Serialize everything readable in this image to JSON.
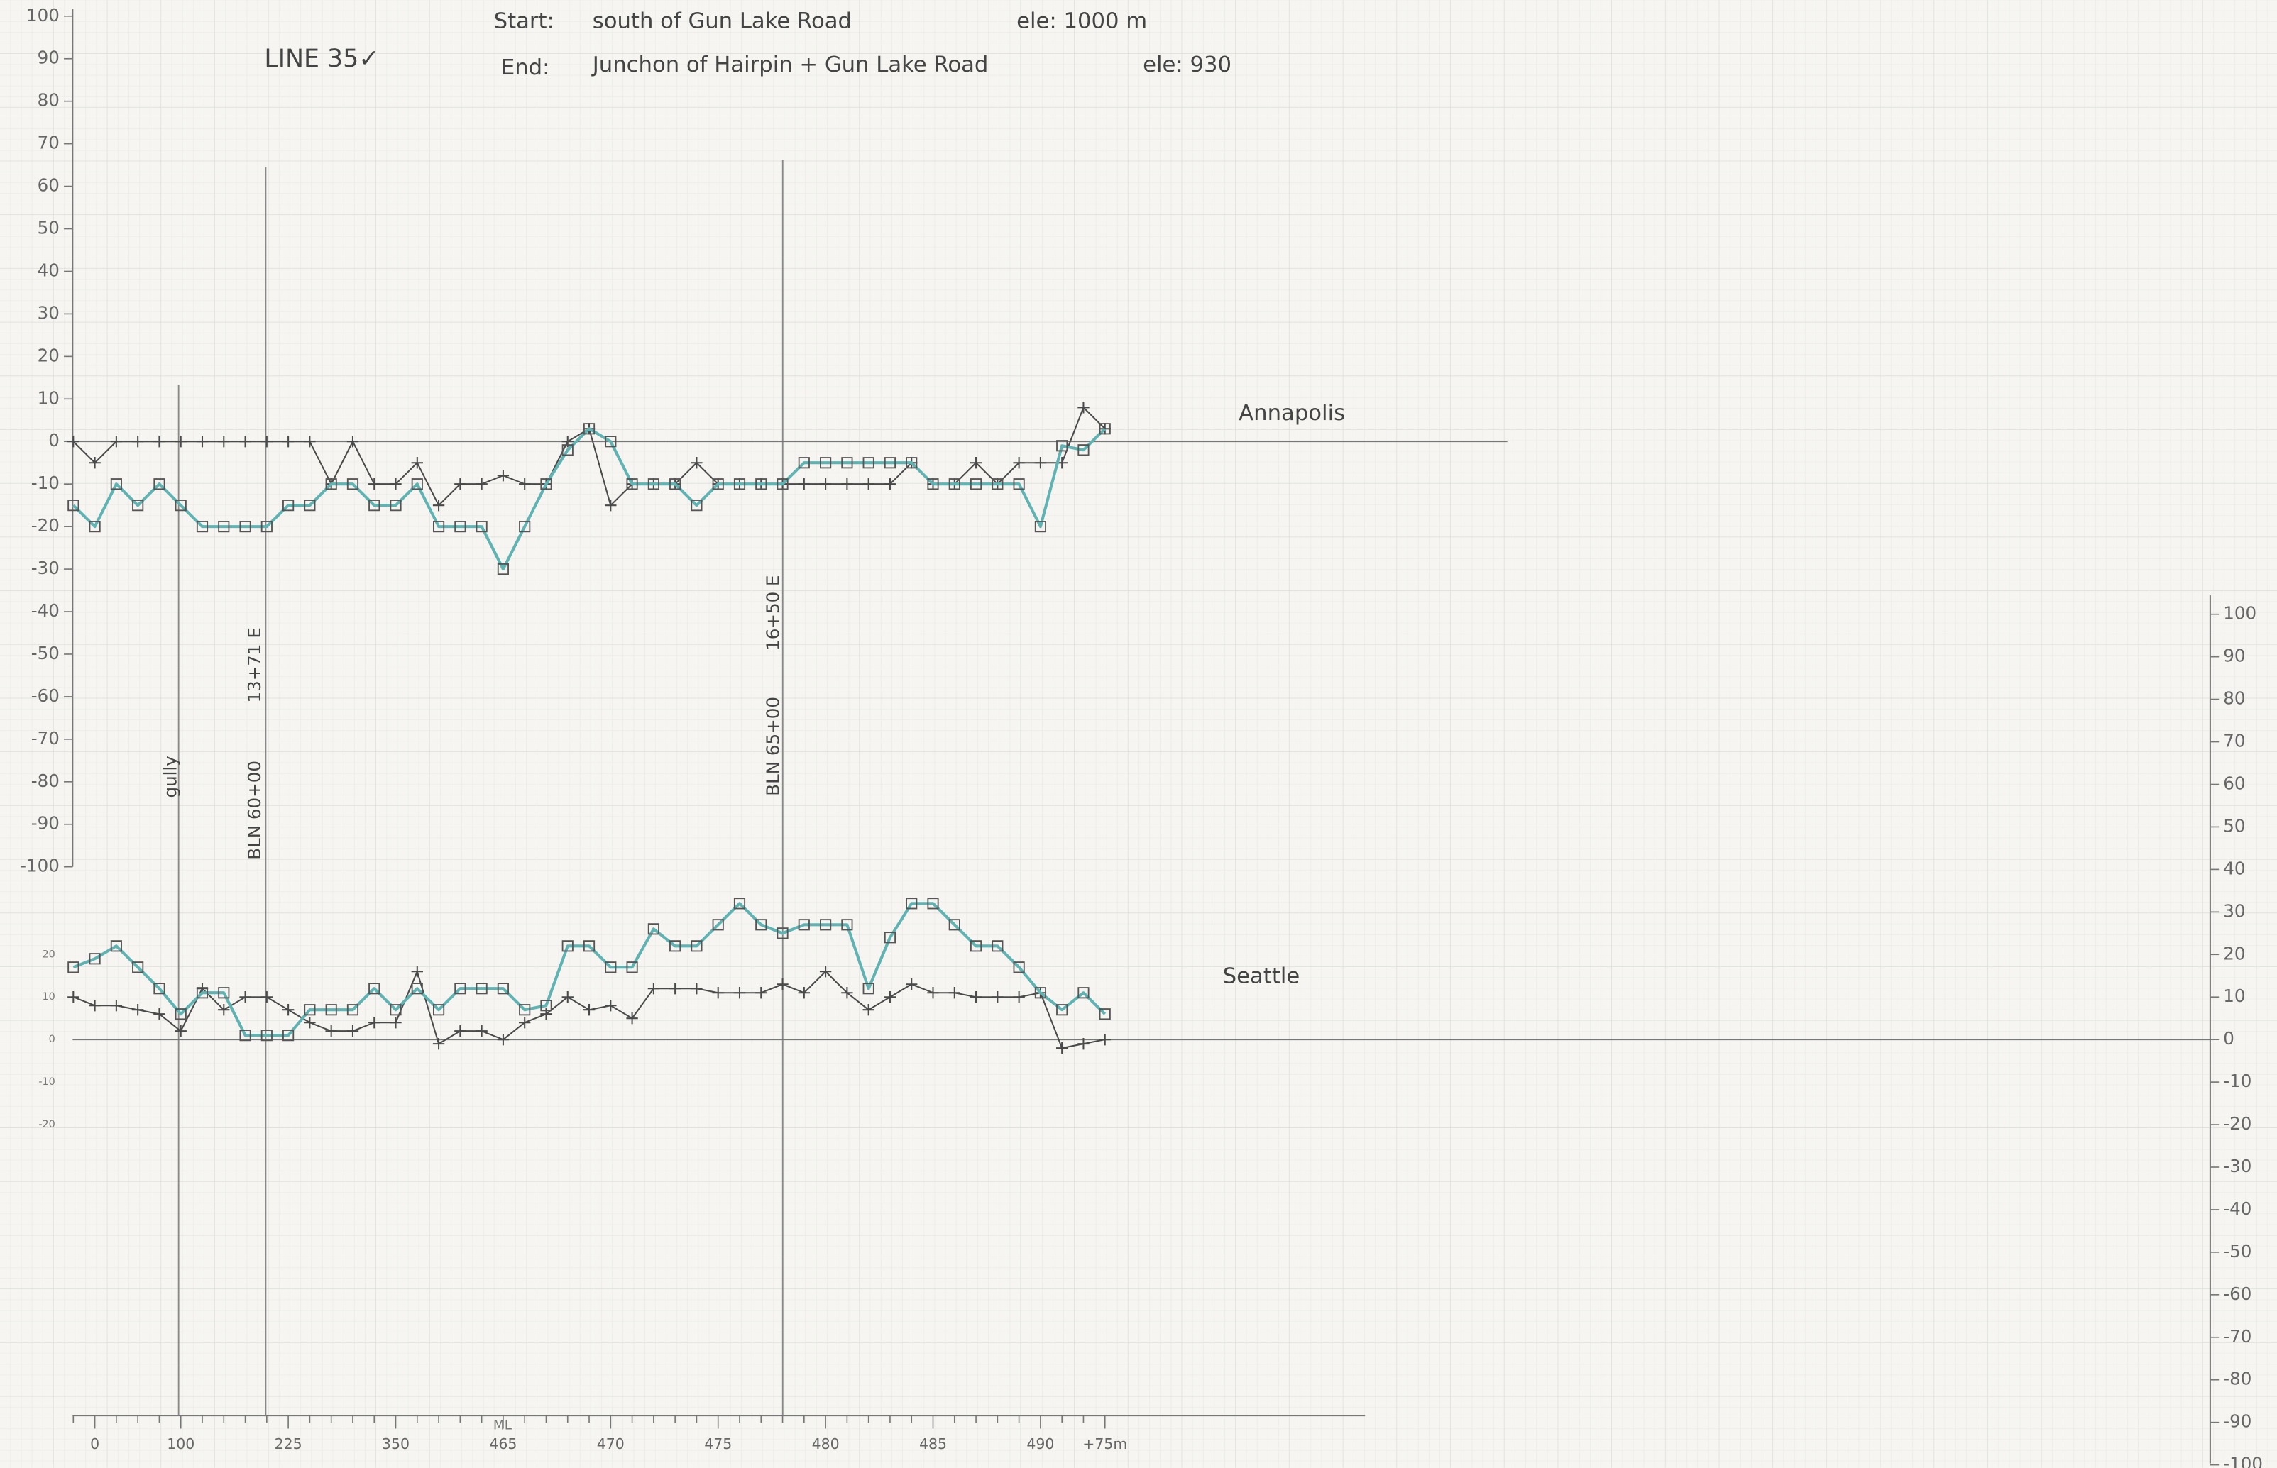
{
  "annotations": {
    "title": "LINE 35✓",
    "start_label": "Start:",
    "start": "south of Gun Lake Road",
    "start_ele": "ele: 1000 m",
    "end_label": "End:",
    "end": "Junchon of Hairpin + Gun Lake Road",
    "end_ele": "ele: 930",
    "gully": "gully",
    "bln1": "BLN 60+00",
    "bln1_offset": "13+71 E",
    "bln2": "BLN 65+00",
    "bln2_offset": "16+50 E",
    "ml": "ML"
  },
  "chart_data": [
    {
      "type": "line",
      "label": "Annapolis",
      "axis_side": "left",
      "ylim": [
        -100,
        100
      ],
      "yticks": [
        100,
        90,
        80,
        70,
        60,
        50,
        40,
        30,
        20,
        10,
        0,
        -10,
        -20,
        -30,
        -40,
        -50,
        -60,
        -70,
        -80,
        -90,
        -100
      ],
      "categories": [
        null,
        "0",
        null,
        null,
        null,
        "100",
        null,
        null,
        null,
        null,
        "225",
        null,
        null,
        null,
        null,
        "350",
        null,
        null,
        null,
        null,
        "465",
        null,
        null,
        null,
        null,
        "470",
        null,
        null,
        null,
        null,
        "475",
        null,
        null,
        null,
        null,
        "480",
        null,
        null,
        null,
        null,
        "485",
        null,
        null,
        null,
        null,
        "490",
        null,
        null,
        "+75m"
      ],
      "series": [
        {
          "marker": "cross",
          "color": "#4a4a4a",
          "values": [
            0,
            -5,
            0,
            0,
            0,
            0,
            0,
            0,
            0,
            0,
            0,
            0,
            -10,
            0,
            -10,
            -10,
            -5,
            -15,
            -10,
            -10,
            -8,
            -10,
            -10,
            0,
            3,
            -15,
            -10,
            -10,
            -10,
            -5,
            -10,
            -10,
            -10,
            -10,
            -10,
            -10,
            -10,
            -10,
            -10,
            -5,
            -10,
            -10,
            -5,
            -10,
            -5,
            -5,
            -5,
            8,
            3
          ]
        },
        {
          "marker": "square",
          "color": "#5fb3b3",
          "values": [
            -15,
            -20,
            -10,
            -15,
            -10,
            -15,
            -20,
            -20,
            -20,
            -20,
            -15,
            -15,
            -10,
            -10,
            -15,
            -15,
            -10,
            -20,
            -20,
            -20,
            -30,
            -20,
            -10,
            -2,
            3,
            0,
            -10,
            -10,
            -10,
            -15,
            -10,
            -10,
            -10,
            -10,
            -5,
            -5,
            -5,
            -5,
            -5,
            -5,
            -10,
            -10,
            -10,
            -10,
            -10,
            -20,
            -1,
            -2,
            3
          ]
        }
      ]
    },
    {
      "type": "line",
      "label": "Seattle",
      "axis_side": "right",
      "ylim": [
        -100,
        100
      ],
      "yticks": [
        100,
        90,
        80,
        70,
        60,
        50,
        40,
        30,
        20,
        10,
        0,
        -10,
        -20,
        -30,
        -40,
        -50,
        -60,
        -70,
        -80,
        -90,
        -100
      ],
      "small_yticks": [
        20,
        10,
        0,
        -10,
        -20
      ],
      "series": [
        {
          "marker": "cross",
          "color": "#4a4a4a",
          "values": [
            10,
            8,
            8,
            7,
            6,
            2,
            12,
            7,
            10,
            10,
            7,
            4,
            2,
            2,
            4,
            4,
            16,
            -1,
            2,
            2,
            0,
            4,
            6,
            10,
            7,
            8,
            5,
            12,
            12,
            12,
            11,
            11,
            11,
            13,
            11,
            16,
            11,
            7,
            10,
            13,
            11,
            11,
            10,
            10,
            10,
            11,
            -2,
            -1,
            0
          ]
        },
        {
          "marker": "square",
          "color": "#5fb3b3",
          "values": [
            17,
            19,
            22,
            17,
            12,
            6,
            11,
            11,
            1,
            1,
            1,
            7,
            7,
            7,
            12,
            7,
            12,
            7,
            12,
            12,
            12,
            7,
            8,
            22,
            22,
            17,
            17,
            26,
            22,
            22,
            27,
            32,
            27,
            25,
            27,
            27,
            27,
            12,
            24,
            32,
            32,
            27,
            22,
            22,
            17,
            11,
            7,
            11,
            6
          ]
        }
      ]
    }
  ]
}
